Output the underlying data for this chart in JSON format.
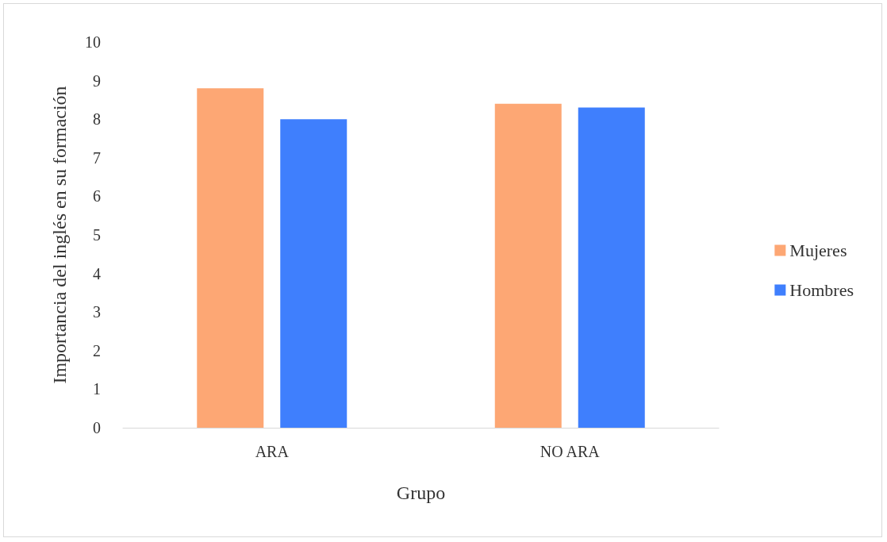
{
  "chart_data": {
    "type": "bar",
    "xlabel": "Grupo",
    "ylabel": "Importancia del inglés en su formación",
    "categories": [
      "ARA",
      "NO ARA"
    ],
    "series": [
      {
        "name": "Mujeres",
        "color": "#fda774",
        "values": [
          8.8,
          8.4
        ]
      },
      {
        "name": "Hombres",
        "color": "#3f7ffd",
        "values": [
          8.0,
          8.3
        ]
      }
    ],
    "ylim": [
      0,
      10
    ],
    "yticks": [
      0,
      1,
      2,
      3,
      4,
      5,
      6,
      7,
      8,
      9,
      10
    ],
    "grid": false,
    "legend": "right"
  }
}
